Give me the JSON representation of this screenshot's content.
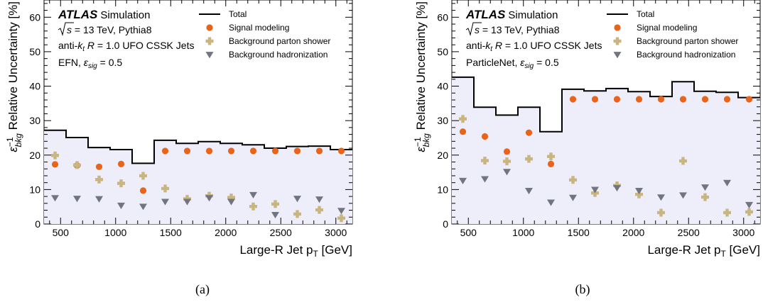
{
  "chart_data": [
    {
      "type": "step+scatter",
      "panel_label": "(a)",
      "experiment": "ATLAS",
      "experiment_tag": "Simulation",
      "annotations": {
        "energy_prefix": "s",
        "energy_text": " = 13 TeV, Pythia8",
        "jets_pre": "anti-",
        "jets_k": "k",
        "jets_t": "t",
        "jets_mid": " R",
        "jets_post": " = 1.0 UFO CSSK Jets",
        "tagger": "EFN",
        "eps_label": "ε",
        "eps_sub": "sig",
        "eps_value": " = 0.5"
      },
      "xlabel": "Large-R Jet p",
      "xlabel_sub": "T",
      "xlabel_unit": " [GeV]",
      "ylabel_eps": "ε",
      "ylabel_sup": "−1",
      "ylabel_sub": "bkg",
      "ylabel_text": " Relative Uncertainty [%]",
      "xlim": [
        350,
        3150
      ],
      "ylim": [
        0,
        65
      ],
      "xticks": [
        500,
        1000,
        1500,
        2000,
        2500,
        3000
      ],
      "yticks": [
        0,
        10,
        20,
        30,
        40,
        50,
        60
      ],
      "legend_position": "top-right",
      "bin_edges": [
        350,
        550,
        750,
        950,
        1150,
        1350,
        1550,
        1750,
        1950,
        2150,
        2350,
        2550,
        2750,
        2950,
        3150
      ],
      "series": [
        {
          "name": "Total",
          "style": "step",
          "color": "#000000",
          "values": [
            27.2,
            25.1,
            22.2,
            21.6,
            17.6,
            24.3,
            23.4,
            23.9,
            23.4,
            23.0,
            22.0,
            22.5,
            22.6,
            21.6
          ]
        },
        {
          "name": "Signal modeling",
          "style": "circle",
          "color": "#e8641b",
          "x": [
            450,
            650,
            850,
            1050,
            1250,
            1450,
            1650,
            1850,
            2050,
            2250,
            2450,
            2650,
            2850,
            3050
          ],
          "values": [
            17.3,
            17.0,
            16.6,
            17.4,
            9.7,
            21.2,
            21.2,
            21.2,
            21.2,
            21.2,
            21.2,
            21.2,
            21.2,
            21.2
          ]
        },
        {
          "name": "Background parton shower",
          "style": "cross",
          "color": "#c9b57f",
          "x": [
            450,
            650,
            850,
            1050,
            1250,
            1450,
            1650,
            1850,
            2050,
            2250,
            2450,
            2650,
            2850,
            3050
          ],
          "values": [
            19.9,
            17.1,
            12.9,
            11.8,
            14.0,
            10.3,
            7.3,
            8.2,
            7.7,
            5.1,
            5.8,
            2.9,
            4.1,
            1.7
          ]
        },
        {
          "name": "Background hadronization",
          "style": "triangle-down",
          "color": "#717581",
          "x": [
            450,
            650,
            850,
            1050,
            1250,
            1450,
            1650,
            1850,
            2050,
            2250,
            2450,
            2650,
            2850,
            3050
          ],
          "values": [
            7.6,
            7.4,
            7.3,
            5.4,
            5.1,
            6.5,
            6.5,
            7.6,
            6.5,
            8.5,
            2.7,
            7.4,
            7.2,
            3.9
          ]
        }
      ]
    },
    {
      "type": "step+scatter",
      "panel_label": "(b)",
      "experiment": "ATLAS",
      "experiment_tag": "Simulation",
      "annotations": {
        "energy_prefix": "s",
        "energy_text": " = 13 TeV, Pythia8",
        "jets_pre": "anti-",
        "jets_k": "k",
        "jets_t": "t",
        "jets_mid": " R",
        "jets_post": " = 1.0 UFO CSSK Jets",
        "tagger": "ParticleNet",
        "eps_label": "ε",
        "eps_sub": "sig",
        "eps_value": " = 0.5"
      },
      "xlabel": "Large-R Jet p",
      "xlabel_sub": "T",
      "xlabel_unit": " [GeV]",
      "ylabel_eps": "ε",
      "ylabel_sup": "−1",
      "ylabel_sub": "bkg",
      "ylabel_text": " Relative Uncertainty [%]",
      "xlim": [
        350,
        3150
      ],
      "ylim": [
        0,
        65
      ],
      "xticks": [
        500,
        1000,
        1500,
        2000,
        2500,
        3000
      ],
      "yticks": [
        0,
        10,
        20,
        30,
        40,
        50,
        60
      ],
      "legend_position": "top-right",
      "bin_edges": [
        350,
        550,
        750,
        950,
        1150,
        1350,
        1550,
        1750,
        1950,
        2150,
        2350,
        2550,
        2750,
        2950,
        3150
      ],
      "series": [
        {
          "name": "Total",
          "style": "step",
          "color": "#000000",
          "values": [
            42.6,
            33.9,
            31.6,
            33.9,
            26.8,
            39.1,
            38.6,
            39.3,
            38.4,
            37.0,
            41.3,
            38.5,
            38.2,
            36.7
          ]
        },
        {
          "name": "Signal modeling",
          "style": "circle",
          "color": "#e8641b",
          "x": [
            450,
            650,
            850,
            1050,
            1250,
            1450,
            1650,
            1850,
            2050,
            2250,
            2450,
            2650,
            2850,
            3050
          ],
          "values": [
            26.8,
            25.4,
            21.0,
            26.5,
            17.4,
            36.2,
            36.2,
            36.2,
            36.2,
            36.2,
            36.2,
            36.2,
            36.2,
            36.2
          ]
        },
        {
          "name": "Background parton shower",
          "style": "cross",
          "color": "#c9b57f",
          "x": [
            450,
            650,
            850,
            1050,
            1250,
            1450,
            1650,
            1850,
            2050,
            2250,
            2450,
            2650,
            2850,
            3050
          ],
          "values": [
            30.5,
            18.4,
            18.2,
            18.9,
            19.6,
            12.8,
            9.0,
            11.2,
            8.6,
            3.3,
            18.3,
            7.8,
            3.3,
            3.5
          ]
        },
        {
          "name": "Background hadronization",
          "style": "triangle-down",
          "color": "#717581",
          "x": [
            450,
            650,
            850,
            1050,
            1250,
            1450,
            1650,
            1850,
            2050,
            2250,
            2450,
            2650,
            2850,
            3050
          ],
          "values": [
            12.6,
            13.1,
            15.2,
            9.7,
            6.3,
            7.7,
            10.0,
            10.5,
            9.7,
            7.8,
            8.4,
            10.7,
            12.0,
            5.6
          ]
        }
      ]
    }
  ]
}
